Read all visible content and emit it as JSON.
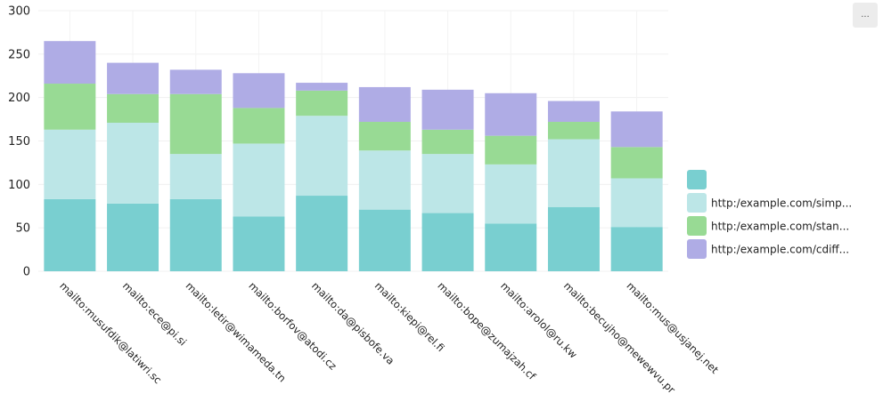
{
  "menu_button": {
    "label": "...",
    "icon": "ellipsis-icon"
  },
  "chart_data": {
    "type": "bar",
    "stacked": true,
    "title": "",
    "xlabel": "",
    "ylabel": "",
    "ylim": [
      0,
      300
    ],
    "yticks": [
      0,
      50,
      100,
      150,
      200,
      250,
      300
    ],
    "grid": true,
    "legend_position": "right",
    "categories": [
      "mailto:musufdik@latiwri.sc",
      "mailto:ece@pi.si",
      "mailto:letir@wimameda.tn",
      "mailto:borfov@atodi.cz",
      "mailto:da@pisbofe.va",
      "mailto:kiepi@rel.fi",
      "mailto:bope@zumajzah.cf",
      "mailto:arolol@ru.kw",
      "mailto:becujho@mewewvu.pr",
      "mailto:mus@usjanej.net"
    ],
    "series": [
      {
        "name": "",
        "color": "#79CFD0",
        "values": [
          83,
          78,
          83,
          63,
          87,
          71,
          67,
          55,
          74,
          51
        ]
      },
      {
        "name": "http:/example.com/simp...",
        "color": "#BCE6E7",
        "values": [
          80,
          93,
          52,
          84,
          92,
          68,
          68,
          68,
          78,
          56
        ]
      },
      {
        "name": "http:/example.com/stan...",
        "color": "#98DA94",
        "values": [
          53,
          33,
          69,
          41,
          29,
          33,
          28,
          33,
          20,
          36
        ]
      },
      {
        "name": "http:/example.com/cdiff...",
        "color": "#AFACE5",
        "values": [
          49,
          36,
          28,
          40,
          9,
          40,
          46,
          49,
          24,
          41
        ]
      }
    ]
  }
}
